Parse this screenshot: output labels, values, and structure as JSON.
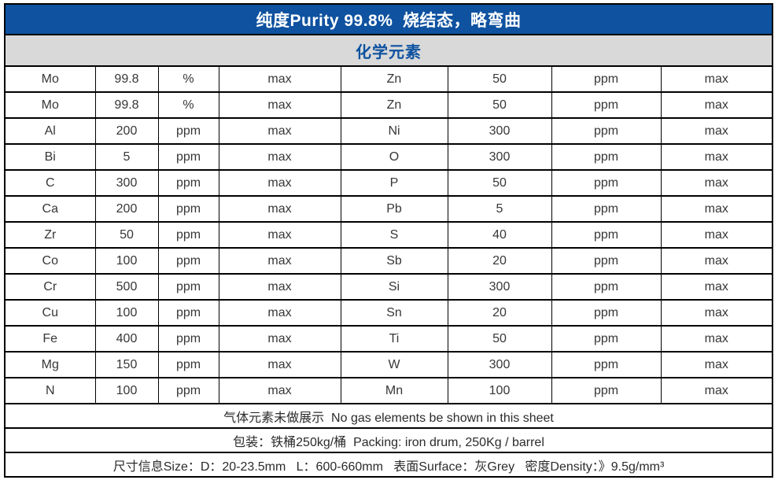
{
  "page": {
    "background": "#ffffff"
  },
  "header": {
    "title": "纯度Purity 99.8%  烧结态，略弯曲",
    "section_label": "化学元素"
  },
  "colors": {
    "header_bg": "#0e52a0",
    "header_text": "#ffffff",
    "section_bg": "#d9d9d9",
    "section_text": "#0e52a0",
    "border": "#000000",
    "cell_text": "#373737"
  },
  "elements_table": {
    "columns_per_side": [
      "element",
      "value",
      "unit",
      "limit"
    ],
    "rows": [
      {
        "left": [
          "Mo",
          "99.8",
          "%",
          "max"
        ],
        "right": [
          "Zn",
          "50",
          "ppm",
          "max"
        ]
      },
      {
        "left": [
          "Mo",
          "99.8",
          "%",
          "max"
        ],
        "right": [
          "Zn",
          "50",
          "ppm",
          "max"
        ]
      },
      {
        "left": [
          "Al",
          "200",
          "ppm",
          "max"
        ],
        "right": [
          "Ni",
          "300",
          "ppm",
          "max"
        ]
      },
      {
        "left": [
          "Bi",
          "5",
          "ppm",
          "max"
        ],
        "right": [
          "O",
          "300",
          "ppm",
          "max"
        ]
      },
      {
        "left": [
          "C",
          "300",
          "ppm",
          "max"
        ],
        "right": [
          "P",
          "50",
          "ppm",
          "max"
        ]
      },
      {
        "left": [
          "Ca",
          "200",
          "ppm",
          "max"
        ],
        "right": [
          "Pb",
          "5",
          "ppm",
          "max"
        ]
      },
      {
        "left": [
          "Zr",
          "50",
          "ppm",
          "max"
        ],
        "right": [
          "S",
          "40",
          "ppm",
          "max"
        ]
      },
      {
        "left": [
          "Co",
          "100",
          "ppm",
          "max"
        ],
        "right": [
          "Sb",
          "20",
          "ppm",
          "max"
        ]
      },
      {
        "left": [
          "Cr",
          "500",
          "ppm",
          "max"
        ],
        "right": [
          "Si",
          "300",
          "ppm",
          "max"
        ]
      },
      {
        "left": [
          "Cu",
          "100",
          "ppm",
          "max"
        ],
        "right": [
          "Sn",
          "20",
          "ppm",
          "max"
        ]
      },
      {
        "left": [
          "Fe",
          "400",
          "ppm",
          "max"
        ],
        "right": [
          "Ti",
          "50",
          "ppm",
          "max"
        ]
      },
      {
        "left": [
          "Mg",
          "150",
          "ppm",
          "max"
        ],
        "right": [
          "W",
          "300",
          "ppm",
          "max"
        ]
      },
      {
        "left": [
          "N",
          "100",
          "ppm",
          "max"
        ],
        "right": [
          "Mn",
          "100",
          "ppm",
          "max"
        ]
      }
    ]
  },
  "notes": {
    "gas_note": "气体元素未做展示  No gas elements be shown in this sheet",
    "packing": "包装：铁桶250kg/桶  Packing: iron drum, 250Kg / barrel",
    "size_info": "尺寸信息Size：D：20-23.5mm   L：600-660mm   表面Surface：灰Grey   密度Density：》9.5g/mm³"
  }
}
